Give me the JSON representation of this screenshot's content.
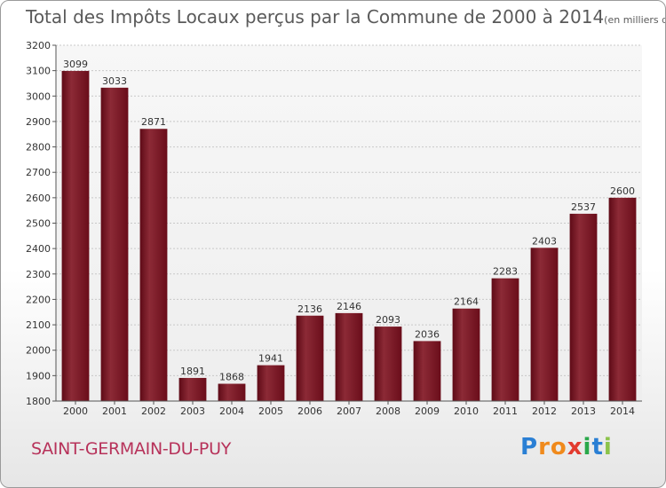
{
  "title": "Total des Impôts Locaux perçus par la Commune de 2000 à 2014",
  "title_unit": "(en milliers d'€)",
  "commune": "SAINT-GERMAIN-DU-PUY",
  "logo": {
    "letters": [
      "P",
      "r",
      "o",
      "x",
      "i",
      "t",
      "i"
    ],
    "colors": [
      "#2a7fd4",
      "#f08a1c",
      "#f08a1c",
      "#e23a2e",
      "#2aa84a",
      "#2a7fd4",
      "#8bc34a"
    ]
  },
  "chart_data": {
    "type": "bar",
    "categories": [
      "2000",
      "2001",
      "2002",
      "2003",
      "2004",
      "2005",
      "2006",
      "2007",
      "2008",
      "2009",
      "2010",
      "2011",
      "2012",
      "2013",
      "2014"
    ],
    "values": [
      3099,
      3033,
      2871,
      1891,
      1868,
      1941,
      2136,
      2146,
      2093,
      2036,
      2164,
      2283,
      2403,
      2537,
      2600
    ],
    "ylim": [
      1800,
      3200
    ],
    "yticks": [
      1800,
      1900,
      2000,
      2100,
      2200,
      2300,
      2400,
      2500,
      2600,
      2700,
      2800,
      2900,
      3000,
      3100,
      3200
    ],
    "grid": true,
    "bar_color": "#7a1020",
    "bar_color_light": "#9a3a45",
    "xlabel": "",
    "ylabel": ""
  }
}
